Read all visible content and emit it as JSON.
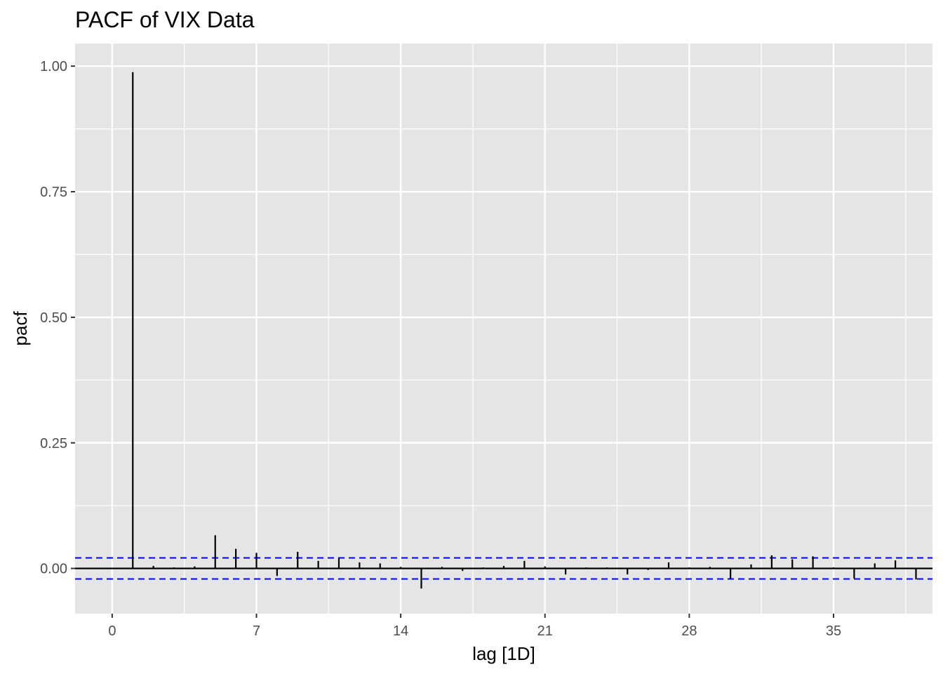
{
  "chart_data": {
    "type": "bar",
    "title": "PACF of VIX Data",
    "xlabel": "lag [1D]",
    "ylabel": "pacf",
    "xlim": [
      -1.8,
      39.8
    ],
    "ylim": [
      -0.09,
      1.045
    ],
    "x_ticks": [
      0,
      7,
      14,
      21,
      28,
      35
    ],
    "x_tick_labels": [
      "0",
      "7",
      "14",
      "21",
      "28",
      "35"
    ],
    "y_ticks": [
      0.0,
      0.25,
      0.5,
      0.75,
      1.0
    ],
    "y_tick_labels": [
      "0.00",
      "0.25",
      "0.50",
      "0.75",
      "1.00"
    ],
    "grid": true,
    "confidence_band": 0.021,
    "colors": {
      "panel": "#e5e5e5",
      "grid": "#ffffff",
      "bars": "#000000",
      "band": "#0000ff",
      "tick_text": "#4d4d4d"
    },
    "series": [
      {
        "lags": [
          1,
          2,
          3,
          4,
          5,
          6,
          7,
          8,
          9,
          10,
          11,
          12,
          13,
          14,
          15,
          16,
          17,
          18,
          19,
          20,
          21,
          22,
          23,
          24,
          25,
          26,
          27,
          28,
          29,
          30,
          31,
          32,
          33,
          34,
          35,
          36,
          37,
          38,
          39
        ],
        "values": [
          0.988,
          0.005,
          0.002,
          0.004,
          0.066,
          0.039,
          0.031,
          -0.015,
          0.033,
          0.015,
          0.021,
          0.012,
          0.01,
          0.003,
          -0.04,
          0.003,
          -0.005,
          0.002,
          0.005,
          0.015,
          0.004,
          -0.012,
          0.002,
          0.002,
          -0.012,
          -0.003,
          0.012,
          0.002,
          0.003,
          -0.02,
          0.008,
          0.026,
          0.018,
          0.024,
          0.002,
          -0.02,
          0.01,
          0.016,
          -0.022
        ]
      }
    ]
  }
}
